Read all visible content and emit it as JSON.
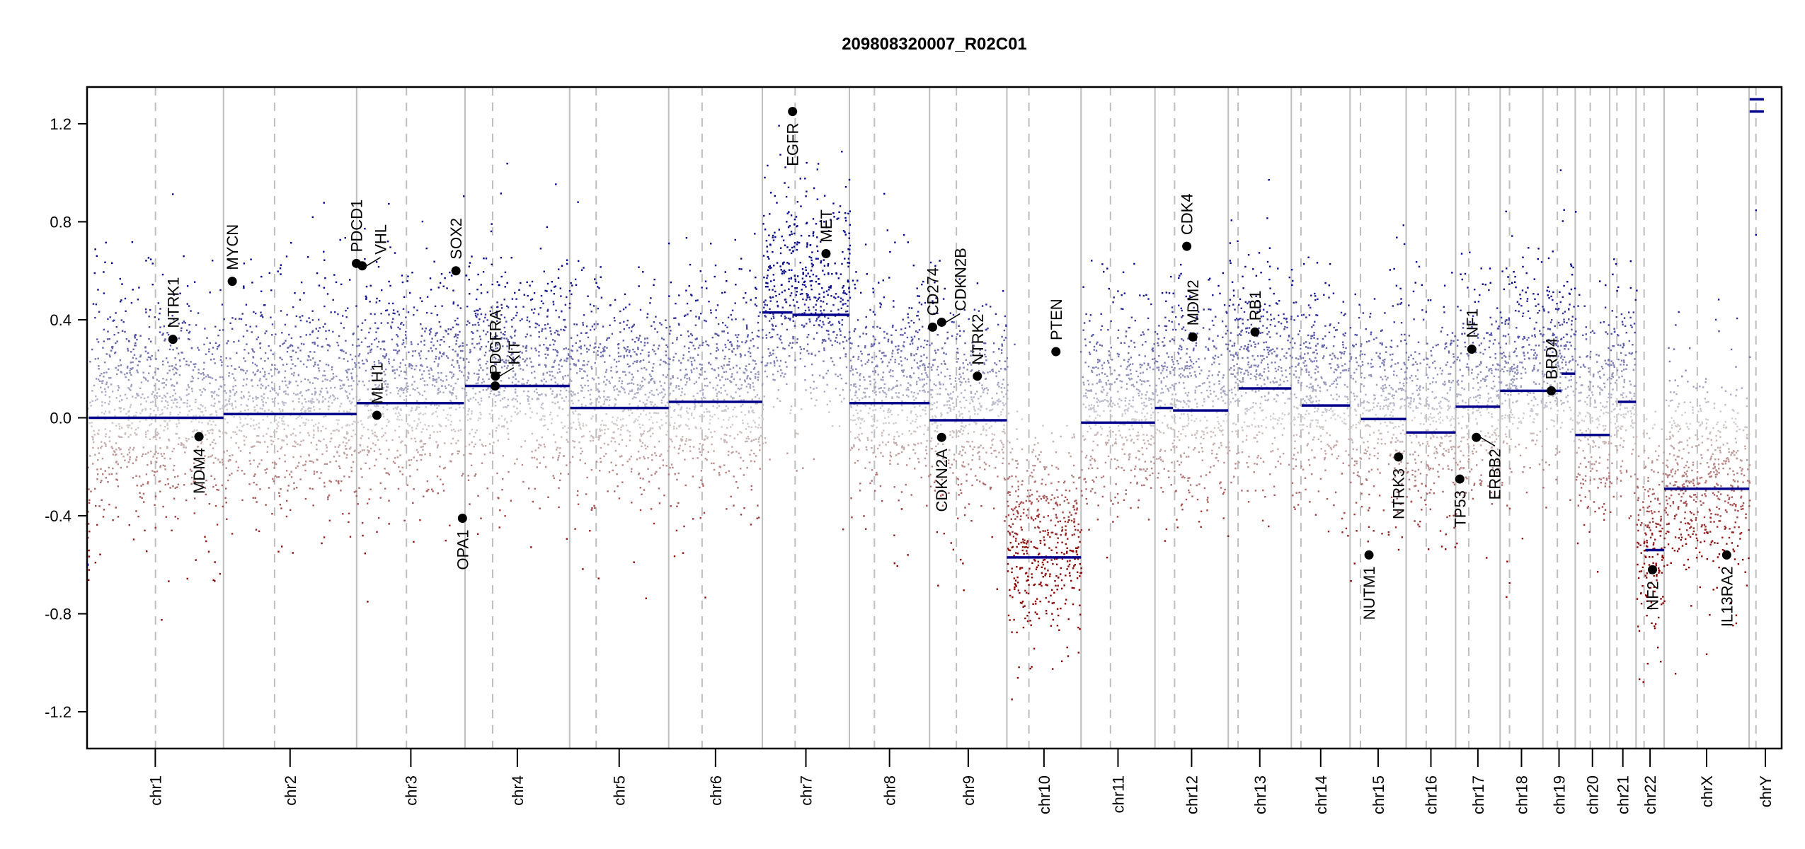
{
  "chart_data": {
    "type": "scatter",
    "title": "209808320007_R02C01",
    "xlabel": "",
    "ylabel": "",
    "ylim": [
      -1.35,
      1.35
    ],
    "yticks": [
      -1.2,
      -0.8,
      -0.4,
      0.0,
      0.4,
      0.8,
      1.2
    ],
    "ytick_labels": [
      "-1.2",
      "-0.8",
      "-0.4",
      "0.0",
      "0.4",
      "0.8",
      "1.2"
    ],
    "grid": false,
    "legend": "none",
    "chromosomes": [
      {
        "name": "chr1",
        "length_mb": 249.25,
        "centromere_mb": 125.0
      },
      {
        "name": "chr2",
        "length_mb": 243.2,
        "centromere_mb": 93.3
      },
      {
        "name": "chr3",
        "length_mb": 198.0,
        "centromere_mb": 91.0
      },
      {
        "name": "chr4",
        "length_mb": 191.15,
        "centromere_mb": 50.4
      },
      {
        "name": "chr5",
        "length_mb": 180.9,
        "centromere_mb": 48.4
      },
      {
        "name": "chr6",
        "length_mb": 171.1,
        "centromere_mb": 61.0
      },
      {
        "name": "chr7",
        "length_mb": 159.1,
        "centromere_mb": 59.9
      },
      {
        "name": "chr8",
        "length_mb": 146.4,
        "centromere_mb": 45.6
      },
      {
        "name": "chr9",
        "length_mb": 141.2,
        "centromere_mb": 49.0
      },
      {
        "name": "chr10",
        "length_mb": 135.5,
        "centromere_mb": 40.2
      },
      {
        "name": "chr11",
        "length_mb": 135.0,
        "centromere_mb": 53.7
      },
      {
        "name": "chr12",
        "length_mb": 133.9,
        "centromere_mb": 35.8
      },
      {
        "name": "chr13",
        "length_mb": 115.2,
        "centromere_mb": 17.9
      },
      {
        "name": "chr14",
        "length_mb": 107.3,
        "centromere_mb": 17.6
      },
      {
        "name": "chr15",
        "length_mb": 102.5,
        "centromere_mb": 19.0
      },
      {
        "name": "chr16",
        "length_mb": 90.4,
        "centromere_mb": 36.6
      },
      {
        "name": "chr17",
        "length_mb": 81.2,
        "centromere_mb": 24.0
      },
      {
        "name": "chr18",
        "length_mb": 78.1,
        "centromere_mb": 17.2
      },
      {
        "name": "chr19",
        "length_mb": 59.1,
        "centromere_mb": 26.5
      },
      {
        "name": "chr20",
        "length_mb": 63.0,
        "centromere_mb": 27.5
      },
      {
        "name": "chr21",
        "length_mb": 48.1,
        "centromere_mb": 13.2
      },
      {
        "name": "chr22",
        "length_mb": 51.3,
        "centromere_mb": 14.7
      },
      {
        "name": "chrX",
        "length_mb": 155.3,
        "centromere_mb": 60.6
      },
      {
        "name": "chrY",
        "length_mb": 59.4,
        "centromere_mb": 12.5
      }
    ],
    "segments": [
      {
        "chrom": "chr1",
        "start": 0,
        "end": 3,
        "value": -0.6
      },
      {
        "chrom": "chr1",
        "start": 3,
        "end": 249.25,
        "value": 0.0
      },
      {
        "chrom": "chr2",
        "start": 0,
        "end": 243.2,
        "value": 0.015
      },
      {
        "chrom": "chr3",
        "start": 0,
        "end": 196,
        "value": 0.06
      },
      {
        "chrom": "chr4",
        "start": 0,
        "end": 191.15,
        "value": 0.13
      },
      {
        "chrom": "chr5",
        "start": 1,
        "end": 180.9,
        "value": 0.04
      },
      {
        "chrom": "chr6",
        "start": 0,
        "end": 171.1,
        "value": 0.065
      },
      {
        "chrom": "chr7",
        "start": 0,
        "end": 55,
        "value": 0.43
      },
      {
        "chrom": "chr7",
        "start": 55,
        "end": 159.1,
        "value": 0.42
      },
      {
        "chrom": "chr8",
        "start": 0,
        "end": 146.4,
        "value": 0.06
      },
      {
        "chrom": "chr9",
        "start": 0,
        "end": 141.2,
        "value": -0.01
      },
      {
        "chrom": "chr10",
        "start": 0,
        "end": 135.5,
        "value": -0.57
      },
      {
        "chrom": "chr11",
        "start": 0,
        "end": 135.0,
        "value": -0.02
      },
      {
        "chrom": "chr12",
        "start": 0,
        "end": 33,
        "value": 0.04
      },
      {
        "chrom": "chr12",
        "start": 33,
        "end": 133.9,
        "value": 0.03
      },
      {
        "chrom": "chr13",
        "start": 19,
        "end": 115.2,
        "value": 0.12
      },
      {
        "chrom": "chr14",
        "start": 19,
        "end": 107.3,
        "value": 0.05
      },
      {
        "chrom": "chr15",
        "start": 20,
        "end": 102.5,
        "value": -0.005
      },
      {
        "chrom": "chr16",
        "start": 0,
        "end": 90.4,
        "value": -0.06
      },
      {
        "chrom": "chr17",
        "start": 0,
        "end": 81.2,
        "value": 0.045
      },
      {
        "chrom": "chr18",
        "start": 0,
        "end": 78.1,
        "value": 0.11
      },
      {
        "chrom": "chr19",
        "start": 0,
        "end": 34,
        "value": 0.11
      },
      {
        "chrom": "chr19",
        "start": 34,
        "end": 59.1,
        "value": 0.18
      },
      {
        "chrom": "chr20",
        "start": 0,
        "end": 63.0,
        "value": -0.07
      },
      {
        "chrom": "chr21",
        "start": 15,
        "end": 48.1,
        "value": 0.065
      },
      {
        "chrom": "chr22",
        "start": 17,
        "end": 51.3,
        "value": -0.54
      },
      {
        "chrom": "chrX",
        "start": 0,
        "end": 155.3,
        "value": -0.29
      },
      {
        "chrom": "chrY",
        "start": 1,
        "end": 27,
        "value": 1.3
      },
      {
        "chrom": "chrY",
        "start": 1,
        "end": 27,
        "value": 1.25
      }
    ],
    "genes": [
      {
        "name": "NTRK1",
        "chrom": "chr1",
        "pos_mb": 156.8,
        "value": 0.32
      },
      {
        "name": "MDM4",
        "chrom": "chr1",
        "pos_mb": 204.5,
        "value": -0.077
      },
      {
        "name": "MYCN",
        "chrom": "chr2",
        "pos_mb": 16.0,
        "value": 0.557
      },
      {
        "name": "PDCD1",
        "chrom": "chr2",
        "pos_mb": 242.8,
        "value": 0.63
      },
      {
        "name": "VHL",
        "chrom": "chr3",
        "pos_mb": 10.2,
        "value": 0.62
      },
      {
        "name": "MLH1",
        "chrom": "chr3",
        "pos_mb": 37.0,
        "value": 0.01
      },
      {
        "name": "SOX2",
        "chrom": "chr3",
        "pos_mb": 181.4,
        "value": 0.6
      },
      {
        "name": "OPA1",
        "chrom": "chr3",
        "pos_mb": 193.3,
        "value": -0.41
      },
      {
        "name": "KIT",
        "chrom": "chr4",
        "pos_mb": 55.5,
        "value": 0.17
      },
      {
        "name": "PDGFRA",
        "chrom": "chr4",
        "pos_mb": 55.1,
        "value": 0.13
      },
      {
        "name": "EGFR",
        "chrom": "chr7",
        "pos_mb": 55.2,
        "value": 1.25
      },
      {
        "name": "MET",
        "chrom": "chr7",
        "pos_mb": 116.3,
        "value": 0.67
      },
      {
        "name": "CD274",
        "chrom": "chr9",
        "pos_mb": 5.5,
        "value": 0.37
      },
      {
        "name": "CDKN2B",
        "chrom": "chr9",
        "pos_mb": 22.0,
        "value": 0.39
      },
      {
        "name": "CDKN2A",
        "chrom": "chr9",
        "pos_mb": 21.9,
        "value": -0.08
      },
      {
        "name": "NTRK2",
        "chrom": "chr9",
        "pos_mb": 87.3,
        "value": 0.17
      },
      {
        "name": "PTEN",
        "chrom": "chr10",
        "pos_mb": 89.6,
        "value": 0.27
      },
      {
        "name": "CDK4",
        "chrom": "chr12",
        "pos_mb": 58.1,
        "value": 0.7
      },
      {
        "name": "MDM2",
        "chrom": "chr12",
        "pos_mb": 69.2,
        "value": 0.33
      },
      {
        "name": "RB1",
        "chrom": "chr13",
        "pos_mb": 48.9,
        "value": 0.35
      },
      {
        "name": "NUTM1",
        "chrom": "chr15",
        "pos_mb": 34.6,
        "value": -0.56
      },
      {
        "name": "NTRK3",
        "chrom": "chr15",
        "pos_mb": 88.5,
        "value": -0.16
      },
      {
        "name": "TP53",
        "chrom": "chr17",
        "pos_mb": 7.5,
        "value": -0.25
      },
      {
        "name": "NF1",
        "chrom": "chr17",
        "pos_mb": 29.5,
        "value": 0.28
      },
      {
        "name": "ERBB2",
        "chrom": "chr17",
        "pos_mb": 37.8,
        "value": -0.08
      },
      {
        "name": "BRD4",
        "chrom": "chr19",
        "pos_mb": 15.4,
        "value": 0.11
      },
      {
        "name": "NF2",
        "chrom": "chr22",
        "pos_mb": 30.0,
        "value": -0.62
      },
      {
        "name": "IL13RA2",
        "chrom": "chrX",
        "pos_mb": 114.3,
        "value": -0.56
      }
    ],
    "probe_noise_sd": 0.2,
    "colors": {
      "gain": "#00008B",
      "neutral": "#D3D3D3",
      "loss": "#8B0000",
      "segment": "#00008B",
      "chrom_border": "#BEBEBE",
      "centromere": "#BEBEBE",
      "gene_point": "#000000"
    }
  }
}
